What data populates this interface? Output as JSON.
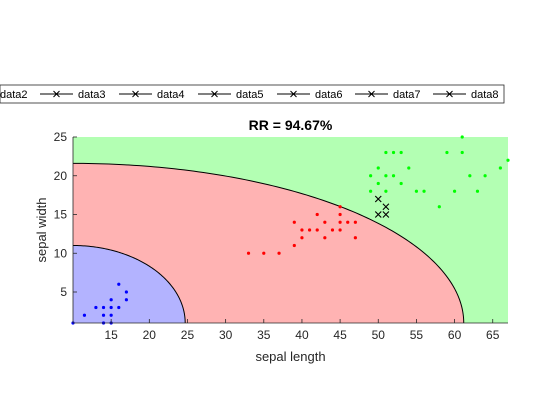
{
  "chart_data": {
    "type": "scatter",
    "title": "RR = 94.67%",
    "xlabel": "sepal length",
    "ylabel": "sepal width",
    "xlim": [
      10,
      67
    ],
    "ylim": [
      1,
      25
    ],
    "xticks": [
      15,
      20,
      25,
      30,
      35,
      40,
      45,
      50,
      55,
      60,
      65
    ],
    "yticks": [
      5,
      10,
      15,
      20,
      25
    ],
    "grid": false,
    "legend": {
      "placement": "top-outside",
      "entries": [
        "data2",
        "data3",
        "data4",
        "data5",
        "data6",
        "data7",
        "data8"
      ]
    },
    "regions": [
      {
        "color": "#b3ffb3",
        "class": "green"
      },
      {
        "color": "#ffb3b3",
        "class": "red"
      },
      {
        "color": "#b3b3ff",
        "class": "blue"
      }
    ],
    "boundaries": [
      {
        "center": [
          10,
          1
        ],
        "semi_axes": [
          14.7,
          10.0
        ]
      },
      {
        "center": [
          10,
          1
        ],
        "semi_axes": [
          51.2,
          20.6
        ]
      }
    ],
    "series": [
      {
        "color": "#0000ff",
        "marker": "dot",
        "points": [
          [
            10,
            1
          ],
          [
            11.5,
            2
          ],
          [
            13,
            3
          ],
          [
            14,
            2
          ],
          [
            14,
            3
          ],
          [
            14,
            1
          ],
          [
            15,
            1
          ],
          [
            15,
            2
          ],
          [
            15,
            3
          ],
          [
            15,
            4
          ],
          [
            16,
            6
          ],
          [
            16,
            3
          ],
          [
            17,
            5
          ],
          [
            17,
            4
          ]
        ]
      },
      {
        "color": "#ff0000",
        "marker": "dot",
        "points": [
          [
            33,
            10
          ],
          [
            35,
            10
          ],
          [
            37,
            10
          ],
          [
            39,
            11
          ],
          [
            39,
            14
          ],
          [
            40,
            13
          ],
          [
            40,
            12
          ],
          [
            41,
            13
          ],
          [
            42,
            13
          ],
          [
            42,
            15
          ],
          [
            43,
            12
          ],
          [
            43,
            14
          ],
          [
            44,
            13
          ],
          [
            45,
            13
          ],
          [
            45,
            14
          ],
          [
            45,
            15
          ],
          [
            45,
            16
          ],
          [
            46,
            14
          ],
          [
            47,
            14
          ],
          [
            47,
            12
          ]
        ]
      },
      {
        "color": "#00ff00",
        "marker": "dot",
        "points": [
          [
            49,
            18
          ],
          [
            49,
            20
          ],
          [
            50,
            19
          ],
          [
            50,
            21
          ],
          [
            51,
            18
          ],
          [
            51,
            20
          ],
          [
            51,
            23
          ],
          [
            52,
            23
          ],
          [
            52,
            20
          ],
          [
            53,
            19
          ],
          [
            53,
            23
          ],
          [
            54,
            21
          ],
          [
            55,
            18
          ],
          [
            56,
            18
          ],
          [
            58,
            16
          ],
          [
            59,
            23
          ],
          [
            60,
            18
          ],
          [
            61,
            23
          ],
          [
            61,
            25
          ],
          [
            62,
            20
          ],
          [
            63,
            18
          ],
          [
            64,
            20
          ],
          [
            66,
            21
          ],
          [
            67,
            22
          ]
        ]
      },
      {
        "color": "#000000",
        "marker": "x",
        "points": [
          [
            50,
            17
          ],
          [
            50,
            15
          ],
          [
            51,
            15
          ],
          [
            51,
            16
          ]
        ]
      }
    ]
  }
}
